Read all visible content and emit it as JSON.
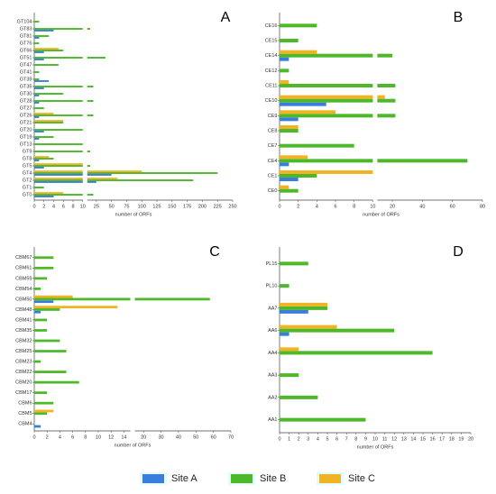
{
  "chart_data": [
    {
      "type": "bar",
      "panel": "A",
      "orientation": "horizontal",
      "xlabel": "number of ORFs",
      "categories": [
        "GT104",
        "GT83",
        "GT81",
        "GT76",
        "GT66",
        "GT51",
        "GT47",
        "GT41",
        "GT39",
        "GT35",
        "GT30",
        "GT28",
        "GT27",
        "GT26",
        "GT21",
        "GT20",
        "GT19",
        "GT13",
        "GT9",
        "GT8",
        "GT5",
        "GT4",
        "GT2",
        "GT1",
        "GT0"
      ],
      "series": [
        {
          "name": "Site A",
          "color": "#3b7ddd",
          "values": [
            0,
            4,
            1,
            0,
            2,
            2,
            0,
            0,
            3,
            2,
            1,
            1,
            0,
            1,
            0,
            2,
            1,
            0,
            0,
            1,
            2,
            50,
            25,
            0,
            4
          ]
        },
        {
          "name": "Site B",
          "color": "#4cb82a",
          "values": [
            1,
            15,
            3,
            1,
            6,
            40,
            5,
            1,
            1,
            20,
            6,
            20,
            2,
            20,
            6,
            10,
            4,
            10,
            15,
            4,
            15,
            225,
            185,
            2,
            20
          ]
        },
        {
          "name": "Site C",
          "color": "#f0b323",
          "values": [
            0,
            0,
            0,
            0,
            5,
            0,
            0,
            0,
            0,
            0,
            0,
            0,
            0,
            4,
            6,
            0,
            0,
            0,
            0,
            3,
            10,
            100,
            60,
            0,
            6
          ]
        }
      ],
      "segments": [
        {
          "xlim": [
            0,
            10
          ],
          "xticks": [
            0,
            2,
            4,
            6,
            8,
            10
          ]
        },
        {
          "xlim": [
            10,
            250
          ],
          "xticks": [
            25,
            50,
            75,
            100,
            125,
            150,
            175,
            200,
            225,
            250
          ]
        }
      ]
    },
    {
      "type": "bar",
      "panel": "B",
      "orientation": "horizontal",
      "xlabel": "number of ORFs",
      "categories": [
        "CE16",
        "CE15",
        "CE14",
        "CE12",
        "CE11",
        "CE10",
        "CE9",
        "CE8",
        "CE7",
        "CE4",
        "CE1",
        "CE0"
      ],
      "series": [
        {
          "name": "Site A",
          "color": "#3b7ddd",
          "values": [
            0,
            0,
            1,
            0,
            0,
            5,
            2,
            0,
            0,
            1,
            2,
            0
          ]
        },
        {
          "name": "Site B",
          "color": "#4cb82a",
          "values": [
            4,
            2,
            20,
            1,
            22,
            22,
            22,
            2,
            8,
            70,
            4,
            2
          ]
        },
        {
          "name": "Site C",
          "color": "#f0b323",
          "values": [
            0,
            0,
            4,
            0,
            1,
            15,
            6,
            2,
            0,
            3,
            10,
            1
          ]
        }
      ],
      "segments": [
        {
          "xlim": [
            0,
            10
          ],
          "xticks": [
            0,
            2,
            4,
            6,
            8,
            10
          ]
        },
        {
          "xlim": [
            10,
            80
          ],
          "xticks": [
            20,
            40,
            60,
            80
          ]
        }
      ]
    },
    {
      "type": "bar",
      "panel": "C",
      "orientation": "horizontal",
      "xlabel": "number of ORFs",
      "categories": [
        "CBM67",
        "CBM61",
        "CBM59",
        "CBM54",
        "CBM50",
        "CBM48",
        "CBM41",
        "CBM35",
        "CBM32",
        "CBM25",
        "CBM23",
        "CBM22",
        "CBM20",
        "CBM17",
        "CBM6",
        "CBM5",
        "CBM4"
      ],
      "series": [
        {
          "name": "Site A",
          "color": "#3b7ddd",
          "values": [
            0,
            0,
            0,
            0,
            3,
            1,
            0,
            0,
            0,
            0,
            0,
            0,
            0,
            0,
            0,
            0,
            1
          ]
        },
        {
          "name": "Site B",
          "color": "#4cb82a",
          "values": [
            3,
            3,
            2,
            1,
            58,
            4,
            2,
            2,
            4,
            5,
            1,
            5,
            7,
            2,
            3,
            2,
            0
          ]
        },
        {
          "name": "Site C",
          "color": "#f0b323",
          "values": [
            0,
            0,
            0,
            0,
            6,
            13,
            0,
            0,
            0,
            0,
            0,
            0,
            0,
            0,
            0,
            3,
            0
          ]
        }
      ],
      "segments": [
        {
          "xlim": [
            0,
            15
          ],
          "xticks": [
            0,
            2,
            4,
            6,
            8,
            10,
            12,
            14
          ]
        },
        {
          "xlim": [
            15,
            70
          ],
          "xticks": [
            20,
            30,
            40,
            50,
            60,
            70
          ]
        }
      ]
    },
    {
      "type": "bar",
      "panel": "D",
      "orientation": "horizontal",
      "xlabel": "number of ORFs",
      "categories": [
        "PL15",
        "PL10",
        "AA7",
        "AA6",
        "AA4",
        "AA3",
        "AA2",
        "AA1"
      ],
      "series": [
        {
          "name": "Site A",
          "color": "#3b7ddd",
          "values": [
            0,
            0,
            3,
            1,
            0,
            0,
            0,
            0
          ]
        },
        {
          "name": "Site B",
          "color": "#4cb82a",
          "values": [
            3,
            1,
            5,
            12,
            16,
            2,
            4,
            9
          ]
        },
        {
          "name": "Site C",
          "color": "#f0b323",
          "values": [
            0,
            0,
            5,
            6,
            2,
            0,
            0,
            0
          ]
        }
      ],
      "segments": [
        {
          "xlim": [
            0,
            20
          ],
          "xticks": [
            0,
            1,
            2,
            3,
            4,
            5,
            6,
            7,
            8,
            9,
            10,
            11,
            12,
            13,
            14,
            15,
            16,
            17,
            18,
            19,
            20
          ]
        }
      ]
    }
  ]
}
